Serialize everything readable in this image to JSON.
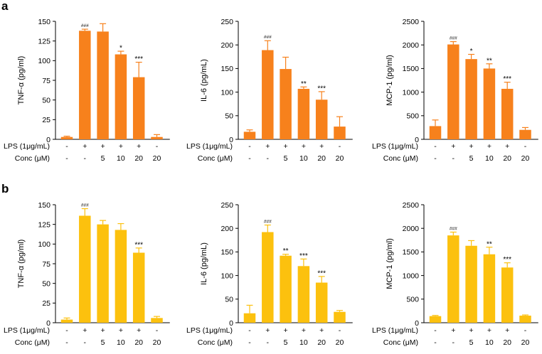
{
  "panels": [
    {
      "letter": "a"
    },
    {
      "letter": "b"
    }
  ],
  "conditions": {
    "lps_label": "LPS (1μg/mL)",
    "conc_label": "Conc (μM)",
    "lps": [
      "-",
      "+",
      "+",
      "+",
      "+",
      "-"
    ],
    "conc": [
      "-",
      "-",
      "5",
      "10",
      "20",
      "20"
    ]
  },
  "colors": {
    "row_a": "#F7811C",
    "row_b": "#FCC10E"
  },
  "chart_data": [
    {
      "panel": "a",
      "type": "bar",
      "ylabel": "TNF-α (pg/ml)",
      "ylim": [
        0,
        150
      ],
      "yticks": [
        "0",
        "25",
        "50",
        "75",
        "100",
        "125",
        "150"
      ],
      "values": [
        3,
        138,
        137,
        108,
        79,
        3
      ],
      "errors": [
        1,
        2,
        10,
        4,
        19,
        3
      ],
      "sig": [
        "",
        "###",
        "",
        "*",
        "***",
        ""
      ]
    },
    {
      "panel": "a",
      "type": "bar",
      "ylabel": "IL-6 (pg/mL)",
      "ylim": [
        0,
        250
      ],
      "yticks": [
        "0",
        "50",
        "100",
        "150",
        "200",
        "250"
      ],
      "values": [
        16,
        189,
        149,
        107,
        84,
        27
      ],
      "errors": [
        4,
        20,
        25,
        4,
        17,
        21
      ],
      "sig": [
        "",
        "###",
        "",
        "**",
        "***",
        ""
      ]
    },
    {
      "panel": "a",
      "type": "bar",
      "ylabel": "MCP-1 (pg/ml)",
      "ylim": [
        0,
        2500
      ],
      "yticks": [
        "0",
        "500",
        "1000",
        "1500",
        "2000",
        "2500"
      ],
      "values": [
        280,
        2010,
        1700,
        1500,
        1070,
        200
      ],
      "errors": [
        130,
        60,
        100,
        100,
        140,
        50
      ],
      "sig": [
        "",
        "###",
        "*",
        "**",
        "***",
        ""
      ]
    },
    {
      "panel": "b",
      "type": "bar",
      "ylabel": "TNF-α (pg/ml)",
      "ylim": [
        0,
        150
      ],
      "yticks": [
        "0",
        "25",
        "50",
        "75",
        "100",
        "125",
        "150"
      ],
      "values": [
        4,
        136,
        125,
        118,
        89,
        6
      ],
      "errors": [
        2,
        9,
        5,
        8,
        6,
        2
      ],
      "sig": [
        "",
        "###",
        "",
        "",
        "***",
        ""
      ]
    },
    {
      "panel": "b",
      "type": "bar",
      "ylabel": "IL-6 (pg/mL)",
      "ylim": [
        0,
        250
      ],
      "yticks": [
        "0",
        "50",
        "100",
        "150",
        "200",
        "250"
      ],
      "values": [
        20,
        192,
        142,
        120,
        85,
        23
      ],
      "errors": [
        17,
        15,
        3,
        15,
        13,
        3
      ],
      "sig": [
        "",
        "###",
        "**",
        "***",
        "***",
        ""
      ]
    },
    {
      "panel": "b",
      "type": "bar",
      "ylabel": "MCP-1 (pg/ml)",
      "ylim": [
        0,
        2500
      ],
      "yticks": [
        "0",
        "500",
        "1000",
        "1500",
        "2000",
        "2500"
      ],
      "values": [
        140,
        1850,
        1630,
        1450,
        1170,
        150
      ],
      "errors": [
        15,
        70,
        110,
        150,
        100,
        15
      ],
      "sig": [
        "",
        "###",
        "",
        "**",
        "***",
        ""
      ]
    }
  ]
}
